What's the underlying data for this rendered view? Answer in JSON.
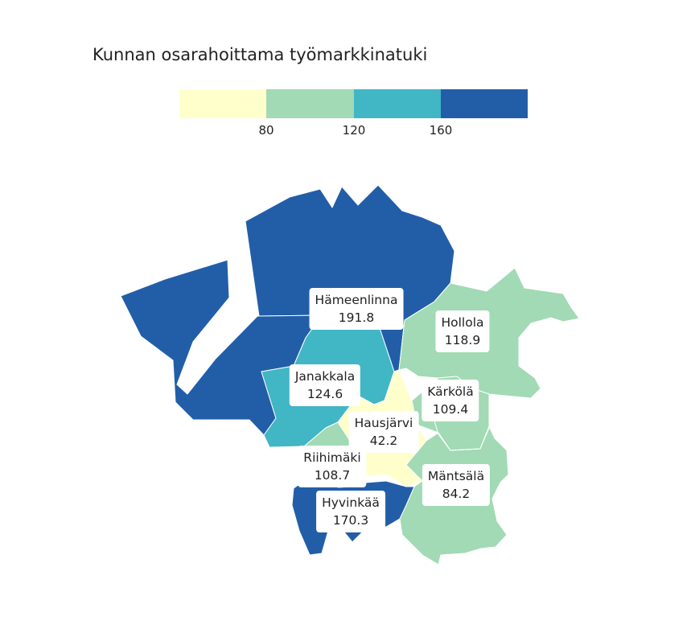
{
  "title": "Kunnan osarahoittama työmarkkinatuki",
  "legend": {
    "colors": [
      "#ffffcc",
      "#a1dab4",
      "#41b6c4",
      "#225ea8"
    ],
    "ticks": [
      "80",
      "120",
      "160"
    ]
  },
  "regions": [
    {
      "name": "Hämeenlinna",
      "value": "191.8",
      "color": "#225ea8"
    },
    {
      "name": "Hollola",
      "value": "118.9",
      "color": "#a1dab4"
    },
    {
      "name": "Janakkala",
      "value": "124.6",
      "color": "#41b6c4"
    },
    {
      "name": "Kärkölä",
      "value": "109.4",
      "color": "#a1dab4"
    },
    {
      "name": "Hausjärvi",
      "value": "42.2",
      "color": "#ffffcc"
    },
    {
      "name": "Riihimäki",
      "value": "108.7",
      "color": "#a1dab4"
    },
    {
      "name": "Mäntsälä",
      "value": "84.2",
      "color": "#a1dab4"
    },
    {
      "name": "Hyvinkää",
      "value": "170.3",
      "color": "#225ea8"
    }
  ]
}
